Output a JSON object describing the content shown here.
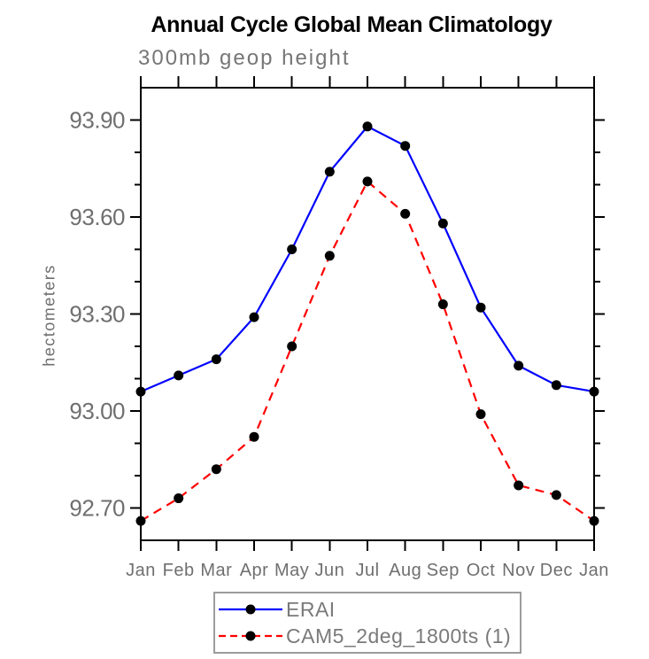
{
  "chart_data": {
    "type": "line",
    "title": "Annual Cycle Global Mean Climatology",
    "subtitle": "300mb geop height",
    "ylabel": "hectometers",
    "categories": [
      "Jan",
      "Feb",
      "Mar",
      "Apr",
      "May",
      "Jun",
      "Jul",
      "Aug",
      "Sep",
      "Oct",
      "Nov",
      "Dec",
      "Jan"
    ],
    "ylim": [
      92.6,
      94.0
    ],
    "y_major_ticks": [
      "92.70",
      "93.00",
      "93.30",
      "93.60",
      "93.90"
    ],
    "y_minor_tick_step": 0.1,
    "grid": false,
    "legend_position": "bottom-center",
    "series": [
      {
        "name": "ERAI",
        "color": "#0000ff",
        "line_style": "solid",
        "marker": "filled-circle",
        "marker_color": "#000000",
        "values": [
          93.06,
          93.11,
          93.16,
          93.29,
          93.5,
          93.74,
          93.88,
          93.82,
          93.58,
          93.32,
          93.14,
          93.08,
          93.06
        ]
      },
      {
        "name": "CAM5_2deg_1800ts (1)",
        "color": "#ff0000",
        "line_style": "dashed",
        "marker": "filled-circle",
        "marker_color": "#000000",
        "values": [
          92.66,
          92.73,
          92.82,
          92.92,
          93.2,
          93.48,
          93.71,
          93.61,
          93.33,
          92.99,
          92.77,
          92.74,
          92.66
        ]
      }
    ]
  },
  "colors": {
    "title": "#000000",
    "labels": "#6f6f6f",
    "axis": "#000000",
    "legend_border": "#9c9c9c",
    "background": "#ffffff"
  }
}
